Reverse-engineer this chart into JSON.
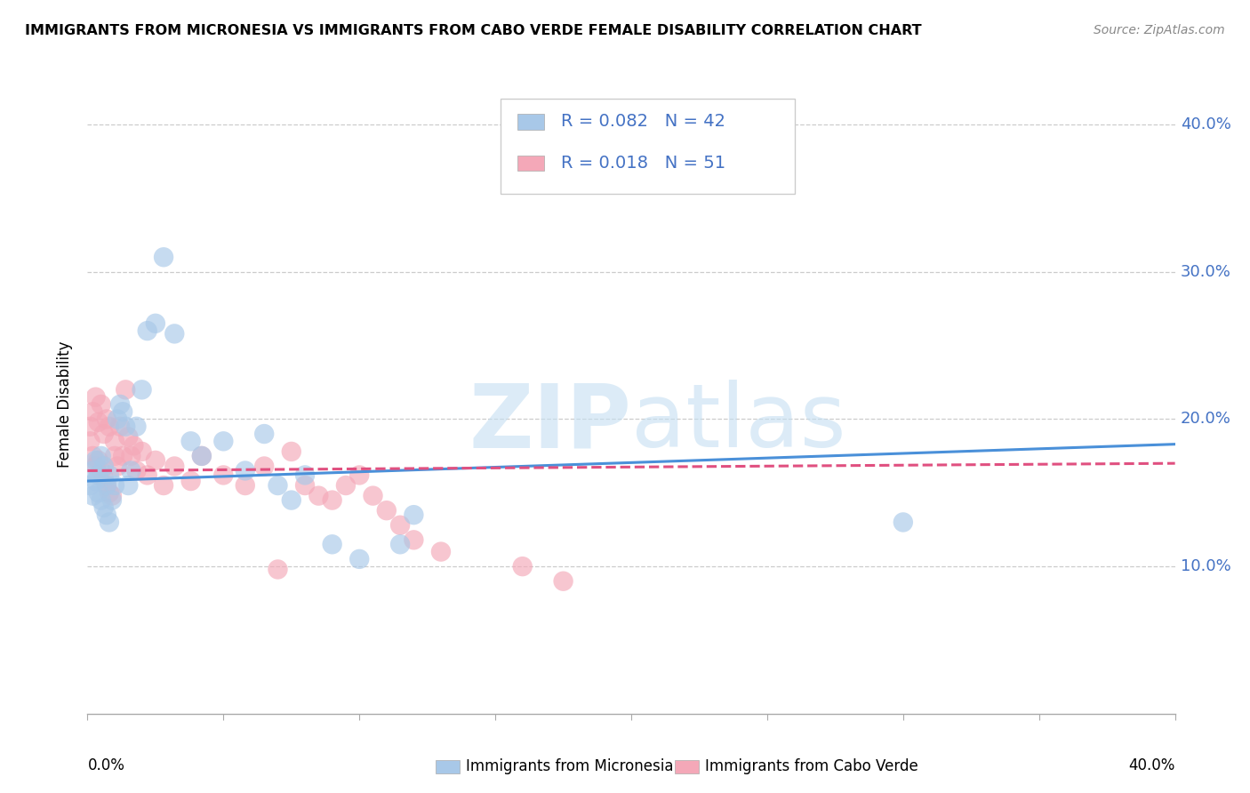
{
  "title": "IMMIGRANTS FROM MICRONESIA VS IMMIGRANTS FROM CABO VERDE FEMALE DISABILITY CORRELATION CHART",
  "source": "Source: ZipAtlas.com",
  "ylabel": "Female Disability",
  "xlim": [
    0.0,
    0.4
  ],
  "ylim": [
    0.0,
    0.42
  ],
  "yticks": [
    0.1,
    0.2,
    0.3,
    0.4
  ],
  "ytick_labels": [
    "10.0%",
    "20.0%",
    "30.0%",
    "40.0%"
  ],
  "legend_labels": [
    "Immigrants from Micronesia",
    "Immigrants from Cabo Verde"
  ],
  "R_micronesia": 0.082,
  "N_micronesia": 42,
  "R_caboverde": 0.018,
  "N_caboverde": 51,
  "color_micronesia": "#a8c8e8",
  "color_caboverde": "#f4a8b8",
  "line_color_micronesia": "#4a90d9",
  "line_color_caboverde": "#e05080",
  "legend_text_color": "#4472c4",
  "right_axis_color": "#4472c4",
  "mic_trend_y0": 0.158,
  "mic_trend_y1": 0.183,
  "cv_trend_y0": 0.165,
  "cv_trend_y1": 0.17,
  "mic_x": [
    0.001,
    0.002,
    0.002,
    0.003,
    0.003,
    0.004,
    0.004,
    0.005,
    0.005,
    0.006,
    0.006,
    0.007,
    0.007,
    0.008,
    0.008,
    0.009,
    0.01,
    0.011,
    0.012,
    0.013,
    0.014,
    0.015,
    0.016,
    0.018,
    0.02,
    0.022,
    0.025,
    0.028,
    0.032,
    0.038,
    0.042,
    0.05,
    0.058,
    0.065,
    0.07,
    0.075,
    0.08,
    0.09,
    0.1,
    0.115,
    0.12,
    0.3
  ],
  "mic_y": [
    0.155,
    0.148,
    0.165,
    0.158,
    0.172,
    0.162,
    0.15,
    0.175,
    0.145,
    0.168,
    0.14,
    0.155,
    0.135,
    0.162,
    0.13,
    0.145,
    0.155,
    0.2,
    0.21,
    0.205,
    0.195,
    0.155,
    0.165,
    0.195,
    0.22,
    0.26,
    0.265,
    0.31,
    0.258,
    0.185,
    0.175,
    0.185,
    0.165,
    0.19,
    0.155,
    0.145,
    0.162,
    0.115,
    0.105,
    0.115,
    0.135,
    0.13
  ],
  "cv_x": [
    0.001,
    0.001,
    0.002,
    0.002,
    0.003,
    0.003,
    0.004,
    0.004,
    0.005,
    0.005,
    0.006,
    0.006,
    0.007,
    0.007,
    0.008,
    0.008,
    0.009,
    0.01,
    0.01,
    0.011,
    0.012,
    0.013,
    0.014,
    0.015,
    0.016,
    0.017,
    0.018,
    0.02,
    0.022,
    0.025,
    0.028,
    0.032,
    0.038,
    0.042,
    0.05,
    0.058,
    0.065,
    0.07,
    0.075,
    0.08,
    0.085,
    0.09,
    0.095,
    0.1,
    0.105,
    0.11,
    0.115,
    0.12,
    0.13,
    0.16,
    0.175
  ],
  "cv_y": [
    0.185,
    0.195,
    0.175,
    0.205,
    0.168,
    0.215,
    0.172,
    0.198,
    0.165,
    0.21,
    0.16,
    0.19,
    0.155,
    0.2,
    0.15,
    0.195,
    0.148,
    0.175,
    0.185,
    0.168,
    0.195,
    0.175,
    0.22,
    0.188,
    0.175,
    0.182,
    0.165,
    0.178,
    0.162,
    0.172,
    0.155,
    0.168,
    0.158,
    0.175,
    0.162,
    0.155,
    0.168,
    0.098,
    0.178,
    0.155,
    0.148,
    0.145,
    0.155,
    0.162,
    0.148,
    0.138,
    0.128,
    0.118,
    0.11,
    0.1,
    0.09
  ]
}
